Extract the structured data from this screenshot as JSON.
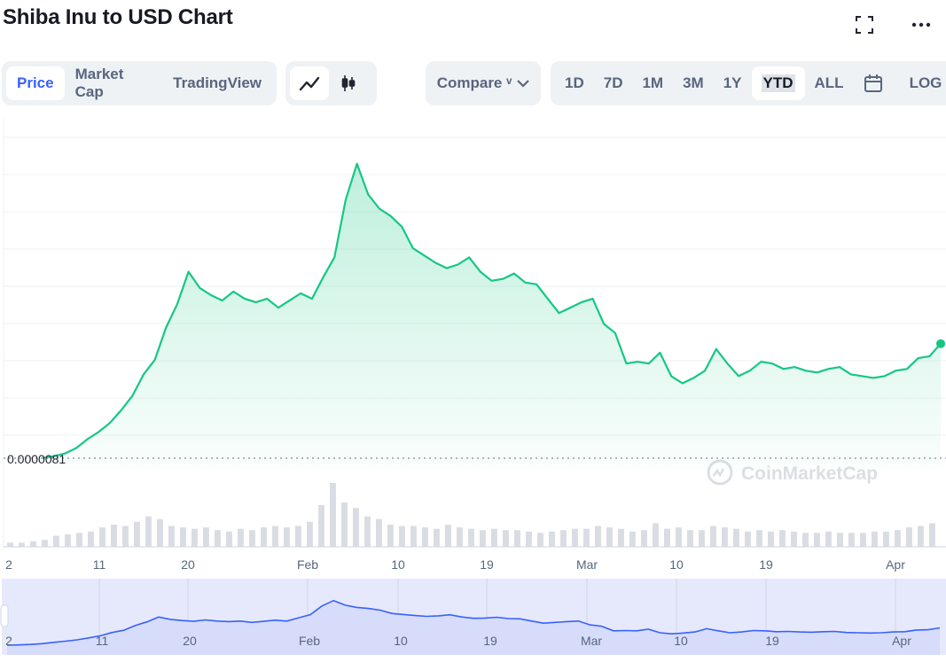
{
  "header": {
    "title": "Shiba Inu to USD Chart"
  },
  "icons": {
    "fullscreen": "fullscreen-icon",
    "more": "more-horizontal-icon"
  },
  "toolbar": {
    "view_tabs": [
      {
        "label": "Price",
        "active": true
      },
      {
        "label": "Market Cap",
        "active": false
      },
      {
        "label": "TradingView",
        "active": false
      }
    ],
    "chart_types": [
      {
        "icon": "line-chart-icon",
        "active": true
      },
      {
        "icon": "candlestick-icon",
        "active": false
      }
    ],
    "compare_label": "Compare ᵛ",
    "ranges": [
      {
        "label": "1D",
        "active": false
      },
      {
        "label": "7D",
        "active": false
      },
      {
        "label": "1M",
        "active": false
      },
      {
        "label": "3M",
        "active": false
      },
      {
        "label": "1Y",
        "active": false
      },
      {
        "label": "YTD",
        "active": true
      },
      {
        "label": "ALL",
        "active": false
      }
    ],
    "calendar_icon": "calendar-icon",
    "log_label": "LOG"
  },
  "chart_data": {
    "type": "line",
    "series": [
      {
        "values": [
          8.15,
          8.25,
          8.4,
          8.7,
          9.2,
          9.6,
          10.1,
          10.8,
          11.6,
          12.8,
          13.6,
          15.4,
          16.7,
          18.5,
          17.6,
          17.2,
          16.9,
          17.4,
          17.0,
          16.8,
          17.0,
          16.5,
          16.9,
          17.3,
          17.0,
          18.2,
          19.3,
          22.5,
          24.5,
          22.8,
          22.0,
          21.6,
          21.0,
          19.8,
          19.4,
          19.0,
          18.7,
          18.9,
          19.3,
          18.5,
          18.0,
          18.1,
          18.4,
          17.9,
          17.8,
          17.0,
          16.2,
          16.5,
          16.8,
          17.0,
          15.6,
          15.1,
          13.4,
          13.5,
          13.4,
          14.0,
          12.7,
          12.3,
          12.6,
          13.0,
          14.2,
          13.4,
          12.7,
          13.0,
          13.5,
          13.4,
          13.1,
          13.2,
          13.0,
          12.9,
          13.1,
          13.2,
          12.8,
          12.7,
          12.6,
          12.7,
          13.0,
          13.1,
          13.7,
          13.8,
          14.5
        ],
        "color": "#16c784"
      }
    ],
    "baseline_value": 8.1,
    "baseline_label": "0.0000081",
    "ylim": [
      7.5,
      27.0
    ],
    "x_ticks": [
      "2",
      "11",
      "20",
      "Feb",
      "10",
      "19",
      "Mar",
      "10",
      "19",
      "Apr"
    ],
    "volume": [
      3,
      3,
      4,
      5,
      8,
      9,
      10,
      11,
      14,
      16,
      15,
      18,
      22,
      20,
      15,
      14,
      13,
      14,
      12,
      11,
      13,
      12,
      14,
      15,
      14,
      15,
      18,
      30,
      46,
      32,
      28,
      22,
      20,
      16,
      15,
      15,
      14,
      13,
      16,
      14,
      13,
      12,
      13,
      12,
      12,
      11,
      10,
      11,
      12,
      13,
      13,
      15,
      14,
      13,
      11,
      12,
      17,
      13,
      14,
      12,
      12,
      15,
      14,
      13,
      11,
      12,
      11,
      12,
      11,
      10,
      10,
      11,
      10,
      10,
      10,
      11,
      11,
      12,
      14,
      15,
      17
    ],
    "navigator_ticks": [
      "2",
      "11",
      "20",
      "Feb",
      "10",
      "19",
      "Mar",
      "10",
      "19",
      "Apr"
    ],
    "grid": true,
    "watermark": "CoinMarketCap"
  }
}
